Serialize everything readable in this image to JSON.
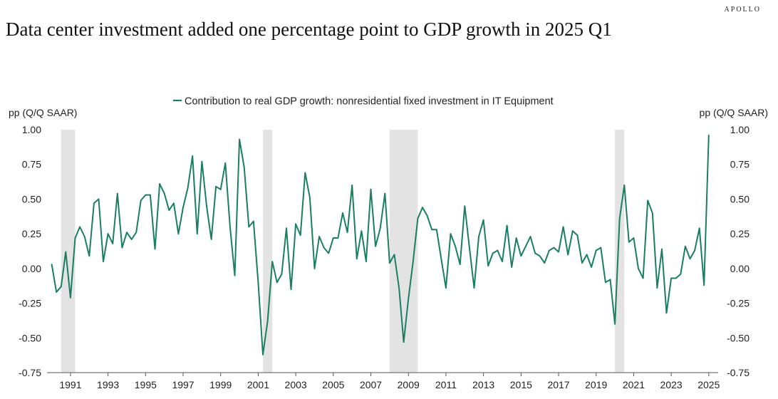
{
  "header": {
    "brand": "APOLLO",
    "title": "Data center investment added one percentage point to GDP growth in 2025 Q1"
  },
  "chart_data": {
    "type": "line",
    "title": "Data center investment added one percentage point to GDP growth in 2025 Q1",
    "ylabel_left": "pp (Q/Q SAAR)",
    "ylabel_right": "pp (Q/Q SAAR)",
    "legend_position": "top-center",
    "grid": false,
    "ylim": [
      -0.75,
      1.0
    ],
    "y_ticks": [
      "1.00",
      "0.75",
      "0.50",
      "0.25",
      "0.00",
      "-0.25",
      "-0.50",
      "-0.75"
    ],
    "xlim": [
      1989.75,
      2025.5
    ],
    "x_ticks": [
      "1991",
      "1993",
      "1995",
      "1997",
      "1999",
      "2001",
      "2003",
      "2005",
      "2007",
      "2009",
      "2011",
      "2013",
      "2015",
      "2017",
      "2019",
      "2021",
      "2023",
      "2025"
    ],
    "line_color": "#1a7f62",
    "recession_color": "#e3e3e3",
    "recessions": [
      [
        1990.5,
        1991.25
      ],
      [
        2001.25,
        2001.75
      ],
      [
        2008.0,
        2009.5
      ],
      [
        2020.0,
        2020.5
      ]
    ],
    "series": [
      {
        "name": "Contribution to real GDP growth: nonresidential fixed investment in IT Equipment",
        "start": [
          1990,
          1
        ],
        "frequency": "quarterly",
        "values": [
          0.03,
          -0.17,
          -0.13,
          0.12,
          -0.21,
          0.22,
          0.3,
          0.23,
          0.09,
          0.47,
          0.5,
          0.05,
          0.25,
          0.18,
          0.54,
          0.15,
          0.26,
          0.21,
          0.26,
          0.49,
          0.53,
          0.53,
          0.14,
          0.61,
          0.54,
          0.42,
          0.47,
          0.25,
          0.44,
          0.58,
          0.81,
          0.25,
          0.77,
          0.45,
          0.21,
          0.59,
          0.57,
          0.76,
          0.3,
          -0.05,
          0.93,
          0.73,
          0.3,
          0.34,
          -0.1,
          -0.62,
          -0.38,
          0.05,
          -0.1,
          -0.04,
          0.29,
          -0.15,
          0.32,
          0.24,
          0.69,
          0.51,
          0.0,
          0.23,
          0.15,
          0.11,
          0.22,
          0.22,
          0.4,
          0.26,
          0.6,
          0.07,
          0.27,
          0.05,
          0.57,
          0.16,
          0.29,
          0.54,
          0.04,
          0.1,
          -0.14,
          -0.53,
          -0.22,
          0.05,
          0.36,
          0.44,
          0.38,
          0.28,
          0.28,
          0.07,
          -0.14,
          0.25,
          0.16,
          0.03,
          0.45,
          0.15,
          -0.14,
          0.23,
          0.35,
          0.02,
          0.11,
          0.13,
          0.05,
          0.31,
          0.01,
          0.22,
          0.09,
          0.16,
          0.23,
          0.11,
          0.09,
          0.04,
          0.13,
          0.15,
          0.12,
          0.3,
          0.1,
          0.27,
          0.24,
          0.04,
          0.1,
          0.01,
          0.13,
          0.15,
          -0.1,
          -0.08,
          -0.4,
          0.36,
          0.6,
          0.19,
          0.22,
          0.0,
          -0.07,
          0.49,
          0.4,
          -0.14,
          0.14,
          -0.32,
          -0.07,
          -0.07,
          -0.04,
          0.16,
          0.07,
          0.13,
          0.29,
          -0.12,
          0.96
        ]
      }
    ]
  }
}
